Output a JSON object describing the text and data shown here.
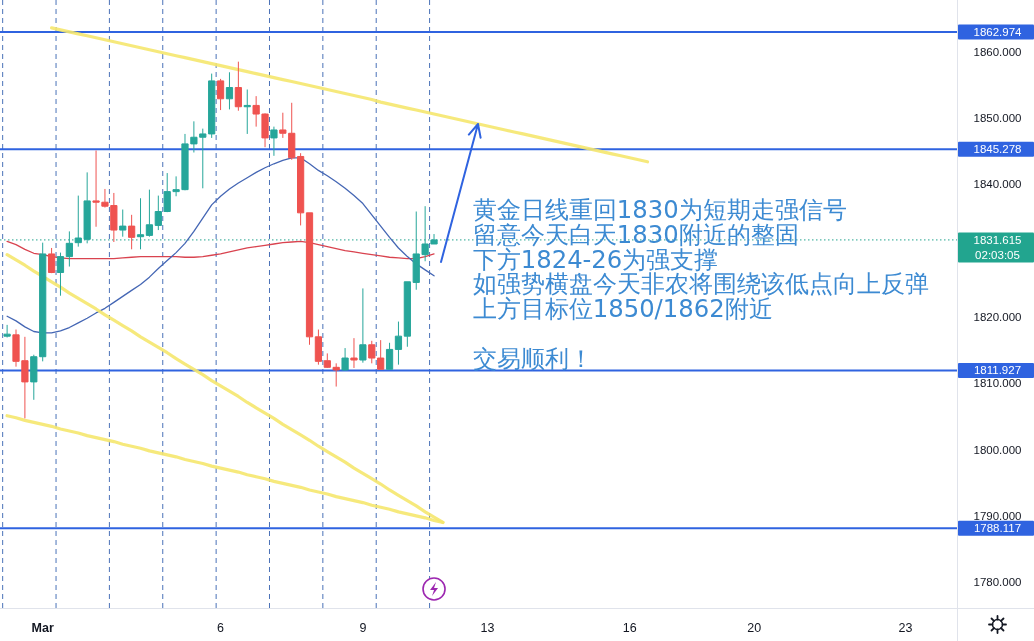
{
  "chart_data": {
    "type": "candlestick",
    "categories": [
      null,
      null,
      null,
      null,
      "Mar",
      null,
      null,
      null,
      null,
      null,
      null,
      null,
      null,
      null,
      null,
      null,
      null,
      null,
      null,
      null,
      null,
      null,
      null,
      null,
      "6",
      null,
      null,
      null,
      null,
      null,
      null,
      null,
      null,
      null,
      null,
      null,
      null,
      null,
      null,
      null,
      "9",
      null,
      null,
      null,
      null,
      null,
      null,
      null,
      null,
      null,
      null,
      null,
      null,
      null,
      "13",
      null,
      null,
      null,
      null,
      null,
      null,
      null,
      null,
      null,
      null,
      null,
      null,
      null,
      null,
      null,
      "16",
      null,
      null,
      null,
      null,
      null,
      null,
      null,
      null,
      null,
      null,
      null,
      null,
      null,
      "20",
      null,
      null,
      null,
      null,
      null,
      null,
      null,
      null,
      null,
      null,
      null,
      null,
      null,
      null,
      null,
      null,
      "23",
      null,
      null,
      null,
      null,
      null
    ],
    "ohlc": [
      [
        1817.1,
        1818.8,
        1816.9,
        1817.4
      ],
      [
        1817.3,
        1818.1,
        1812.5,
        1813.3
      ],
      [
        1813.4,
        1817.0,
        1804.7,
        1810.2
      ],
      [
        1810.2,
        1814.3,
        1807.5,
        1814.0
      ],
      [
        1814.0,
        1831.2,
        1813.3,
        1829.5
      ],
      [
        1829.5,
        1830.4,
        1826.6,
        1826.7
      ],
      [
        1826.7,
        1829.7,
        1823.2,
        1829.1
      ],
      [
        1829.1,
        1832.9,
        1827.6,
        1831.1
      ],
      [
        1831.2,
        1838.3,
        1830.6,
        1831.9
      ],
      [
        1831.7,
        1841.8,
        1831.1,
        1837.5
      ],
      [
        1837.5,
        1845.1,
        1833.6,
        1837.3
      ],
      [
        1837.3,
        1839.3,
        1836.5,
        1836.7
      ],
      [
        1836.8,
        1838.7,
        1831.3,
        1833.1
      ],
      [
        1833.1,
        1836.2,
        1832.1,
        1833.7
      ],
      [
        1833.7,
        1835.4,
        1830.2,
        1832.0
      ],
      [
        1832.1,
        1837.9,
        1830.2,
        1832.4
      ],
      [
        1832.3,
        1839.2,
        1832.1,
        1833.9
      ],
      [
        1833.8,
        1838.3,
        1833.1,
        1835.9
      ],
      [
        1835.9,
        1841.7,
        1835.8,
        1838.9
      ],
      [
        1838.9,
        1841.2,
        1838.2,
        1839.2
      ],
      [
        1839.2,
        1847.6,
        1839.1,
        1846.1
      ],
      [
        1846.1,
        1849.5,
        1844.8,
        1847.1
      ],
      [
        1847.1,
        1848.4,
        1839.4,
        1847.6
      ],
      [
        1847.6,
        1856.7,
        1847.0,
        1855.6
      ],
      [
        1855.6,
        1855.9,
        1851.2,
        1852.9
      ],
      [
        1852.9,
        1856.9,
        1851.3,
        1854.6
      ],
      [
        1854.6,
        1858.5,
        1851.1,
        1851.7
      ],
      [
        1851.7,
        1854.3,
        1847.6,
        1851.9
      ],
      [
        1851.9,
        1853.3,
        1848.7,
        1850.6
      ],
      [
        1850.6,
        1850.7,
        1845.6,
        1847.0
      ],
      [
        1847.0,
        1848.7,
        1844.3,
        1848.2
      ],
      [
        1848.2,
        1850.8,
        1847.0,
        1847.7
      ],
      [
        1847.7,
        1852.3,
        1843.7,
        1844.0
      ],
      [
        1844.2,
        1844.7,
        1833.8,
        1835.7
      ],
      [
        1835.7,
        1835.7,
        1815.8,
        1817.0
      ],
      [
        1817.0,
        1818.1,
        1812.8,
        1813.3
      ],
      [
        1813.4,
        1814.5,
        1812.3,
        1812.4
      ],
      [
        1812.4,
        1813.0,
        1809.5,
        1812.0
      ],
      [
        1812.0,
        1815.3,
        1811.9,
        1813.8
      ],
      [
        1813.8,
        1816.8,
        1812.3,
        1813.5
      ],
      [
        1813.5,
        1824.3,
        1813.1,
        1815.8
      ],
      [
        1815.8,
        1816.4,
        1813.0,
        1813.8
      ],
      [
        1813.8,
        1816.5,
        1812.1,
        1812.1
      ],
      [
        1812.1,
        1816.1,
        1812.1,
        1815.1
      ],
      [
        1815.1,
        1819.3,
        1812.8,
        1817.1
      ],
      [
        1817.1,
        1825.3,
        1815.5,
        1825.3
      ],
      [
        1825.2,
        1835.9,
        1824.1,
        1829.5
      ],
      [
        1829.4,
        1836.7,
        1828.4,
        1831.0
      ],
      [
        1831.0,
        1832.5,
        1831.0,
        1831.615
      ],
      null,
      null,
      null,
      null,
      null,
      null,
      null,
      null,
      null,
      null,
      null,
      null,
      null,
      null,
      null,
      null,
      null,
      null,
      null,
      null,
      null,
      null,
      null,
      null,
      null,
      null,
      null,
      null,
      null,
      null,
      null,
      null,
      null,
      null,
      null,
      null,
      null,
      null,
      null,
      null,
      null,
      null,
      null,
      null,
      null,
      null,
      null,
      null,
      null,
      null,
      null,
      null,
      null,
      null,
      null,
      null,
      null,
      null
    ],
    "colors": [
      "#26a69a",
      "#ef5350",
      "#ef5350",
      "#26a69a",
      "#26a69a",
      "#ef5350",
      "#26a69a",
      "#26a69a",
      "#26a69a",
      "#26a69a",
      "#ef5350",
      "#ef5350",
      "#ef5350",
      "#26a69a",
      "#ef5350",
      "#26a69a",
      "#26a69a",
      "#26a69a",
      "#26a69a",
      "#26a69a",
      "#26a69a",
      "#26a69a",
      "#26a69a",
      "#26a69a",
      "#ef5350",
      "#26a69a",
      "#ef5350",
      "#26a69a",
      "#ef5350",
      "#ef5350",
      "#26a69a",
      "#ef5350",
      "#ef5350",
      "#ef5350",
      "#ef5350",
      "#ef5350",
      "#ef5350",
      "#ef5350",
      "#26a69a",
      "#ef5350",
      "#26a69a",
      "#ef5350",
      "#ef5350",
      "#26a69a",
      "#26a69a",
      "#26a69a",
      "#26a69a",
      "#26a69a",
      "#26a69a",
      null,
      null,
      null,
      null,
      null,
      null,
      null,
      null,
      null,
      null,
      null,
      null,
      null,
      null,
      null,
      null,
      null,
      null,
      null,
      null,
      null,
      null,
      null,
      null,
      null,
      null,
      null,
      null,
      null,
      null,
      null,
      null,
      null,
      null,
      null,
      null,
      null,
      null,
      null,
      null,
      null,
      null,
      null,
      null,
      null,
      null,
      null,
      null,
      null,
      null,
      null,
      null,
      null,
      null,
      null,
      null,
      null,
      null
    ],
    "series": [
      {
        "type": "line",
        "color": "#d9434f",
        "values": [
          1831.4,
          1830.9,
          1830.2,
          1829.6,
          1829.4,
          1829.1,
          1828.9,
          1828.8,
          1828.8,
          1828.8,
          1828.8,
          1828.8,
          1828.8,
          1828.9,
          1829.0,
          1829.1,
          1829.1,
          1829.1,
          1829.1,
          1829.1,
          1829.0,
          1829.0,
          1829.1,
          1829.3,
          1829.5,
          1829.8,
          1830.1,
          1830.4,
          1830.6,
          1830.8,
          1831.0,
          1831.2,
          1831.3,
          1831.4,
          1831.2,
          1830.9,
          1830.6,
          1830.3,
          1830.0,
          1829.8,
          1829.6,
          1829.4,
          1829.2,
          1829.0,
          1828.9,
          1828.8,
          1828.8,
          1829.1,
          1829.5,
          null,
          null,
          null,
          null,
          null,
          null,
          null,
          null,
          null,
          null,
          null,
          null,
          null,
          null,
          null,
          null,
          null,
          null,
          null,
          null,
          null,
          null,
          null,
          null,
          null,
          null,
          null,
          null,
          null,
          null,
          null,
          null,
          null,
          null,
          null,
          null,
          null,
          null,
          null,
          null,
          null,
          null,
          null,
          null,
          null,
          null,
          null,
          null,
          null,
          null,
          null,
          null,
          null,
          null,
          null,
          null,
          null,
          null
        ]
      },
      {
        "type": "line",
        "color": "#4466b4",
        "values": [
          1820.1,
          1819.4,
          1818.5,
          1817.8,
          1817.6,
          1817.6,
          1817.9,
          1818.4,
          1819.1,
          1819.8,
          1820.6,
          1821.3,
          1822.2,
          1823.1,
          1824.0,
          1824.9,
          1826.0,
          1827.3,
          1828.5,
          1829.7,
          1831.1,
          1832.9,
          1834.9,
          1836.9,
          1838.2,
          1839.3,
          1840.2,
          1841.0,
          1841.8,
          1842.5,
          1843.1,
          1843.6,
          1844.0,
          1844.0,
          1843.1,
          1842.1,
          1841.3,
          1840.4,
          1839.4,
          1838.3,
          1837.1,
          1835.4,
          1833.7,
          1832.0,
          1830.4,
          1829.1,
          1828.0,
          1827.1,
          1826.2,
          null,
          null,
          null,
          null,
          null,
          null,
          null,
          null,
          null,
          null,
          null,
          null,
          null,
          null,
          null,
          null,
          null,
          null,
          null,
          null,
          null,
          null,
          null,
          null,
          null,
          null,
          null,
          null,
          null,
          null,
          null,
          null,
          null,
          null,
          null,
          null,
          null,
          null,
          null,
          null,
          null,
          null,
          null,
          null,
          null,
          null,
          null,
          null,
          null,
          null,
          null,
          null,
          null,
          null,
          null,
          null,
          null,
          null
        ]
      },
      {
        "type": "line",
        "color": "#f5e76e",
        "values": [
          null,
          null,
          null,
          null,
          null,
          1863.6,
          1863.3,
          1863.0,
          1862.7,
          1862.4,
          1862.1,
          1861.8,
          1861.5,
          1861.2,
          1860.9,
          1860.6,
          1860.3,
          1860.0,
          1859.7,
          1859.4,
          1859.1,
          1858.8,
          1858.5,
          1858.2,
          1857.9,
          1857.6,
          1857.3,
          1857.0,
          1856.7,
          1856.4,
          1856.1,
          1855.8,
          1855.5,
          1855.2,
          1854.9,
          1854.6,
          1854.3,
          1854.0,
          1853.7,
          1853.4,
          1853.1,
          1852.8,
          1852.4,
          1852.1,
          1851.8,
          1851.5,
          1851.2,
          1850.9,
          1850.6,
          1850.3,
          1850.0,
          1849.7,
          1849.4,
          1849.1,
          1848.8,
          1848.5,
          1848.2,
          1847.9,
          1847.6,
          1847.3,
          1847.0,
          1846.7,
          1846.4,
          1846.1,
          1845.8,
          1845.5,
          1845.2,
          1844.9,
          1844.6,
          1844.3,
          1844.0,
          1843.7,
          1843.4,
          null,
          null,
          null,
          null,
          null,
          null,
          null,
          null,
          null,
          null,
          null,
          null,
          null,
          null,
          null,
          null,
          null,
          null,
          null,
          null,
          null,
          null,
          null,
          null,
          null,
          null,
          null,
          null,
          null,
          null,
          null,
          null,
          null,
          null
        ]
      },
      {
        "type": "line",
        "color": "#f5e76e",
        "values": [
          1829.4,
          1828.6,
          1827.8,
          1826.9,
          1826.1,
          1825.3,
          1824.5,
          1823.6,
          1822.8,
          1822.0,
          1821.2,
          1820.3,
          1819.5,
          1818.7,
          1817.9,
          1817.0,
          1816.2,
          1815.4,
          1814.6,
          1813.7,
          1812.9,
          1812.1,
          1811.3,
          1810.4,
          1809.6,
          1808.8,
          1808.0,
          1807.1,
          1806.3,
          1805.5,
          1804.7,
          1803.8,
          1803.0,
          1802.2,
          1801.4,
          1800.5,
          1799.7,
          1798.9,
          1798.1,
          1797.2,
          1796.4,
          1795.6,
          1794.8,
          1793.9,
          1793.1,
          1792.3,
          1791.5,
          1790.6,
          1789.8,
          1789.0,
          null,
          null,
          null,
          null,
          null,
          null,
          null,
          null,
          null,
          null,
          null,
          null,
          null,
          null,
          null,
          null,
          null,
          null,
          null,
          null,
          null,
          null,
          null,
          null,
          null,
          null,
          null,
          null,
          null,
          null,
          null,
          null,
          null,
          null,
          null,
          null,
          null,
          null,
          null,
          null,
          null,
          null,
          null,
          null,
          null,
          null,
          null,
          null,
          null,
          null,
          null,
          null,
          null,
          null,
          null,
          null,
          null
        ]
      },
      {
        "type": "line",
        "color": "#f5e76e",
        "values": [
          1805.1,
          1804.8,
          1804.4,
          1804.1,
          1803.8,
          1803.5,
          1803.1,
          1802.8,
          1802.5,
          1802.1,
          1801.8,
          1801.5,
          1801.2,
          1800.8,
          1800.5,
          1800.2,
          1799.8,
          1799.5,
          1799.2,
          1798.9,
          1798.5,
          1798.2,
          1797.9,
          1797.5,
          1797.2,
          1796.9,
          1796.6,
          1796.2,
          1795.9,
          1795.6,
          1795.2,
          1794.9,
          1794.6,
          1794.3,
          1793.9,
          1793.6,
          1793.3,
          1792.9,
          1792.6,
          1792.3,
          1792.0,
          1791.6,
          1791.3,
          1791.0,
          1790.6,
          1790.3,
          1790.0,
          1789.7,
          1789.3,
          1789.0,
          null,
          null,
          null,
          null,
          null,
          null,
          null,
          null,
          null,
          null,
          null,
          null,
          null,
          null,
          null,
          null,
          null,
          null,
          null,
          null,
          null,
          null,
          null,
          null,
          null,
          null,
          null,
          null,
          null,
          null,
          null,
          null,
          null,
          null,
          null,
          null,
          null,
          null,
          null,
          null,
          null,
          null,
          null,
          null,
          null,
          null,
          null,
          null,
          null,
          null,
          null,
          null,
          null,
          null,
          null,
          null,
          null
        ]
      }
    ],
    "ylim": [
      1776.1,
      1867.8
    ],
    "yticks": [
      {
        "value": 1780,
        "label": "1780.000"
      },
      {
        "value": 1790,
        "label": "1790.000"
      },
      {
        "value": 1800,
        "label": "1800.000"
      },
      {
        "value": 1810,
        "label": "1810.000"
      },
      {
        "value": 1820,
        "label": "1820.000"
      },
      {
        "value": 1840,
        "label": "1840.000"
      },
      {
        "value": 1850,
        "label": "1850.000"
      },
      {
        "value": 1860,
        "label": "1860.000"
      }
    ],
    "ref_lines": [
      {
        "axis": "y",
        "value": 1862.974,
        "label": "1862.974",
        "color": "#2f63e0",
        "line_style": "solid"
      },
      {
        "axis": "y",
        "value": 1845.278,
        "label": "1845.278",
        "color": "#2f63e0",
        "line_style": "solid"
      },
      {
        "axis": "y",
        "value": 1811.927,
        "label": "1811.927",
        "color": "#2f63e0",
        "line_style": "solid"
      },
      {
        "axis": "y",
        "value": 1788.117,
        "label": "1788.117",
        "color": "#2f63e0",
        "line_style": "solid"
      },
      {
        "axis": "y",
        "value": 1831.615,
        "label": "1831.615\n02:03:05",
        "color": "#22a58f",
        "line_style": "dotted"
      }
    ],
    "annotations": [
      "黄金日线重回1830为短期走强信号",
      "留意今天白天1830附近的整固",
      "下方1824-26为强支撑",
      "如强势横盘今天非农将围绕该低点向上反弹",
      "上方目标位1850/1862附近",
      "交易顺利！"
    ]
  }
}
